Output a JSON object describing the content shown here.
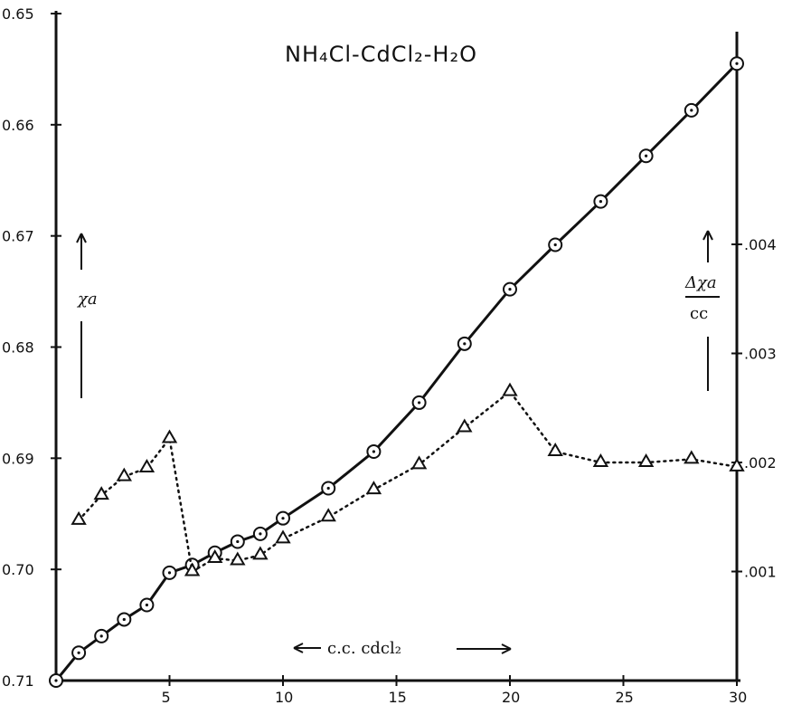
{
  "chart_data": {
    "type": "line",
    "title": "NH₄Cl-CdCl₂-H₂O",
    "xlabel": "c.c. cdcl₂",
    "ylabel_left": "χa",
    "ylabel_right_numerator": "Δχa",
    "ylabel_right_denominator": "cc",
    "xlim": [
      0,
      30
    ],
    "ylim_left": [
      0.71,
      0.65
    ],
    "ylim_right": [
      0.0,
      0.0054
    ],
    "x_ticks": [
      "5",
      "10",
      "15",
      "20",
      "25",
      "30"
    ],
    "y_left_ticks": [
      "0.65",
      "0.66",
      "0.67",
      "0.68",
      "0.69",
      "0.70",
      "0.71"
    ],
    "y_right_ticks": [
      ".001",
      ".002",
      ".003",
      ".004"
    ],
    "grid": false,
    "series": [
      {
        "axis": "left",
        "marker": "circle",
        "style": "solid",
        "points": [
          [
            0,
            0.71
          ],
          [
            1,
            0.7075
          ],
          [
            2,
            0.706
          ],
          [
            3,
            0.7045
          ],
          [
            4,
            0.7032
          ],
          [
            5,
            0.7003
          ],
          [
            6,
            0.6996
          ],
          [
            7,
            0.6985
          ],
          [
            8,
            0.6975
          ],
          [
            9,
            0.6968
          ],
          [
            10,
            0.6954
          ],
          [
            12,
            0.6927
          ],
          [
            14,
            0.6894
          ],
          [
            16,
            0.685
          ],
          [
            18,
            0.6797
          ],
          [
            20,
            0.6748
          ],
          [
            22,
            0.6708
          ],
          [
            24,
            0.6669
          ],
          [
            26,
            0.6628
          ],
          [
            28,
            0.6587
          ],
          [
            30,
            0.6545
          ]
        ]
      },
      {
        "axis": "right",
        "marker": "triangle",
        "style": "dotted",
        "points": [
          [
            1,
            0.00147
          ],
          [
            2,
            0.0017
          ],
          [
            3,
            0.00187
          ],
          [
            4,
            0.00195
          ],
          [
            5,
            0.00222
          ],
          [
            6,
            0.001
          ],
          [
            7,
            0.00112
          ],
          [
            8,
            0.0011
          ],
          [
            9,
            0.00115
          ],
          [
            10,
            0.0013
          ],
          [
            12,
            0.0015
          ],
          [
            14,
            0.00175
          ],
          [
            16,
            0.00198
          ],
          [
            18,
            0.00232
          ],
          [
            20,
            0.00265
          ],
          [
            22,
            0.0021
          ],
          [
            24,
            0.002
          ],
          [
            26,
            0.002
          ],
          [
            28,
            0.00203
          ],
          [
            30,
            0.00196
          ]
        ]
      }
    ]
  }
}
